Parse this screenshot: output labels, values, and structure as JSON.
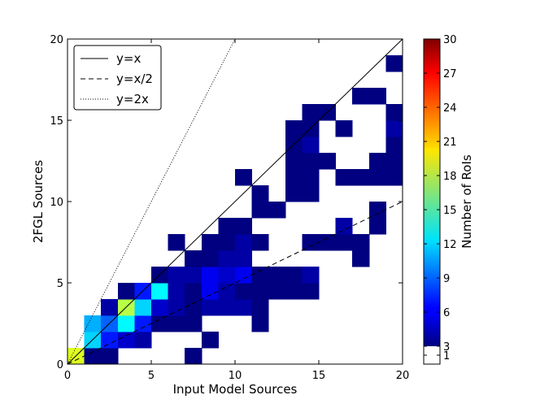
{
  "chart_data": {
    "type": "heatmap",
    "xlabel": "Input Model Sources",
    "ylabel": "2FGL Sources",
    "xlim": [
      0,
      20
    ],
    "ylim": [
      0,
      20
    ],
    "x_ticks": [
      "0",
      "5",
      "10",
      "15",
      "20"
    ],
    "y_ticks": [
      "0",
      "5",
      "10",
      "15",
      "20"
    ],
    "bin_size": 1,
    "colorbar": {
      "label": "Number of RoIs",
      "range": [
        1,
        30
      ],
      "ticks": [
        "1",
        "3",
        "6",
        "9",
        "12",
        "15",
        "18",
        "21",
        "24",
        "27",
        "30"
      ],
      "lowest_color": "#ffffff"
    },
    "lines": [
      {
        "label": "y=x",
        "slope": 1,
        "style": "solid"
      },
      {
        "label": "y=x/2",
        "slope": 0.5,
        "style": "dashed"
      },
      {
        "label": "y=2x",
        "slope": 2,
        "style": "dotted"
      }
    ],
    "legend_position": "top-left",
    "cells": [
      [
        0,
        0,
        19
      ],
      [
        1,
        0,
        3
      ],
      [
        1,
        1,
        12
      ],
      [
        1,
        2,
        11
      ],
      [
        2,
        0,
        3
      ],
      [
        2,
        1,
        7
      ],
      [
        2,
        2,
        9
      ],
      [
        2,
        3,
        4
      ],
      [
        3,
        1,
        5
      ],
      [
        3,
        2,
        13
      ],
      [
        3,
        3,
        18
      ],
      [
        3,
        4,
        3
      ],
      [
        4,
        1,
        4
      ],
      [
        4,
        2,
        7
      ],
      [
        4,
        3,
        12
      ],
      [
        4,
        4,
        7
      ],
      [
        5,
        2,
        3
      ],
      [
        5,
        3,
        5
      ],
      [
        5,
        4,
        13
      ],
      [
        5,
        5,
        3
      ],
      [
        6,
        2,
        3
      ],
      [
        6,
        3,
        4
      ],
      [
        6,
        4,
        4
      ],
      [
        6,
        5,
        4
      ],
      [
        6,
        7,
        3
      ],
      [
        7,
        0,
        3
      ],
      [
        7,
        2,
        3
      ],
      [
        7,
        3,
        3
      ],
      [
        7,
        4,
        3
      ],
      [
        7,
        5,
        4
      ],
      [
        7,
        6,
        3
      ],
      [
        8,
        1,
        3
      ],
      [
        8,
        3,
        4
      ],
      [
        8,
        4,
        6
      ],
      [
        8,
        5,
        6
      ],
      [
        8,
        6,
        3
      ],
      [
        8,
        7,
        3
      ],
      [
        9,
        3,
        4
      ],
      [
        9,
        4,
        4
      ],
      [
        9,
        5,
        5
      ],
      [
        9,
        6,
        4
      ],
      [
        9,
        7,
        3
      ],
      [
        9,
        8,
        3
      ],
      [
        10,
        3,
        4
      ],
      [
        10,
        4,
        3
      ],
      [
        10,
        5,
        6
      ],
      [
        10,
        6,
        4
      ],
      [
        10,
        7,
        4
      ],
      [
        10,
        8,
        3
      ],
      [
        10,
        11,
        3
      ],
      [
        11,
        2,
        3
      ],
      [
        11,
        3,
        3
      ],
      [
        11,
        4,
        3
      ],
      [
        11,
        5,
        3
      ],
      [
        11,
        7,
        3
      ],
      [
        11,
        9,
        3
      ],
      [
        11,
        10,
        3
      ],
      [
        12,
        4,
        3
      ],
      [
        12,
        5,
        3
      ],
      [
        12,
        9,
        3
      ],
      [
        13,
        4,
        3
      ],
      [
        13,
        5,
        3
      ],
      [
        13,
        10,
        3
      ],
      [
        13,
        11,
        3
      ],
      [
        13,
        12,
        3
      ],
      [
        13,
        13,
        3
      ],
      [
        13,
        14,
        3
      ],
      [
        14,
        4,
        3
      ],
      [
        14,
        5,
        4
      ],
      [
        14,
        7,
        3
      ],
      [
        14,
        10,
        3
      ],
      [
        14,
        11,
        3
      ],
      [
        14,
        12,
        3
      ],
      [
        14,
        13,
        4
      ],
      [
        14,
        14,
        3
      ],
      [
        14,
        15,
        3
      ],
      [
        15,
        7,
        3
      ],
      [
        15,
        12,
        3
      ],
      [
        15,
        15,
        3
      ],
      [
        16,
        7,
        3
      ],
      [
        16,
        8,
        4
      ],
      [
        16,
        11,
        3
      ],
      [
        16,
        14,
        3
      ],
      [
        17,
        6,
        3
      ],
      [
        17,
        7,
        3
      ],
      [
        17,
        11,
        3
      ],
      [
        17,
        16,
        3
      ],
      [
        18,
        8,
        3
      ],
      [
        18,
        9,
        3
      ],
      [
        18,
        11,
        3
      ],
      [
        18,
        12,
        3
      ],
      [
        18,
        16,
        3
      ],
      [
        19,
        11,
        3
      ],
      [
        19,
        12,
        3
      ],
      [
        19,
        13,
        3
      ],
      [
        19,
        14,
        4
      ],
      [
        19,
        15,
        3
      ],
      [
        19,
        18,
        3
      ]
    ]
  }
}
